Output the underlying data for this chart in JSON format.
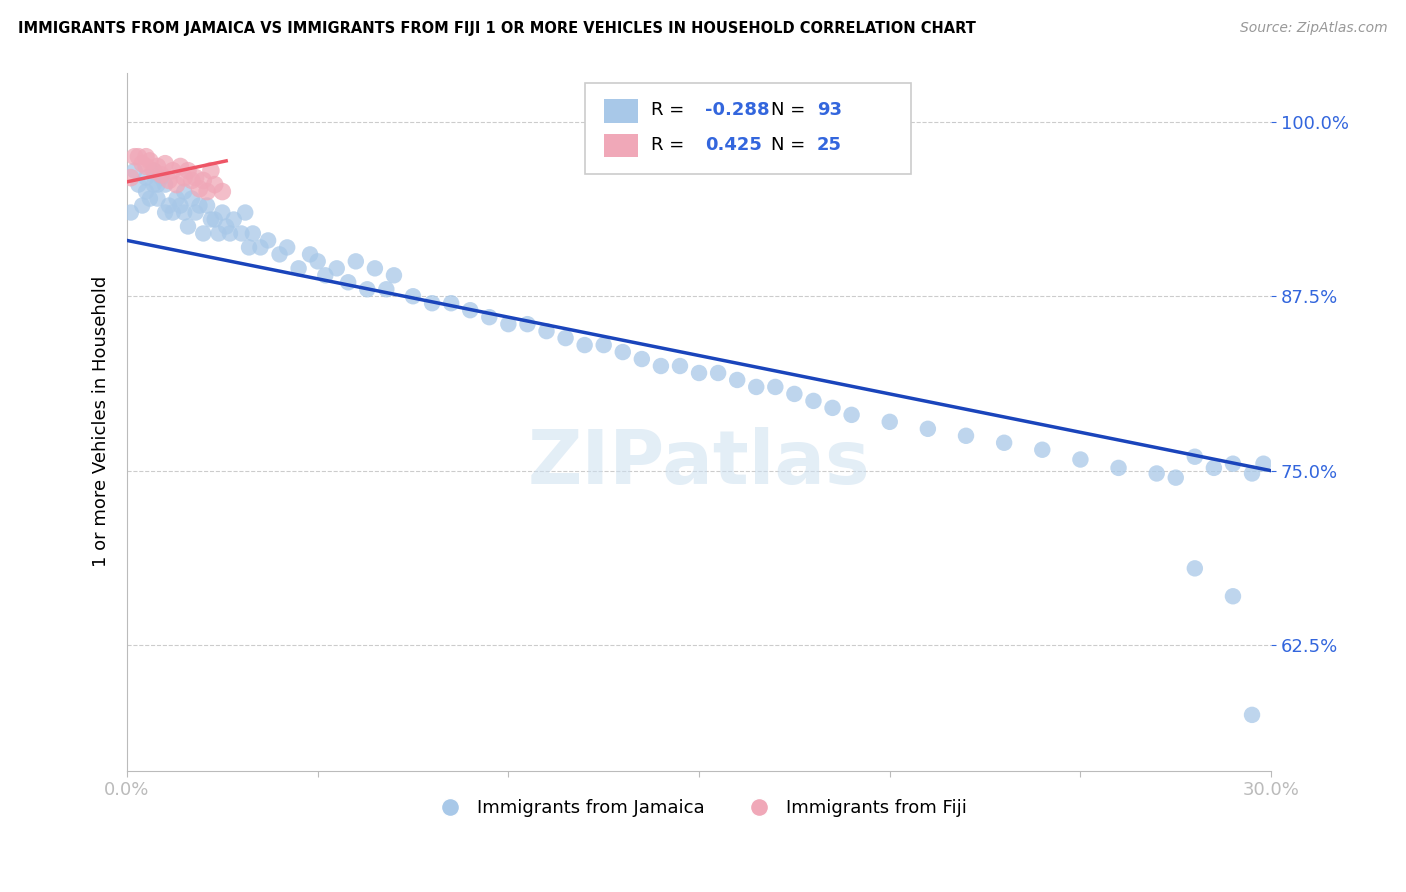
{
  "title": "IMMIGRANTS FROM JAMAICA VS IMMIGRANTS FROM FIJI 1 OR MORE VEHICLES IN HOUSEHOLD CORRELATION CHART",
  "source": "Source: ZipAtlas.com",
  "ylabel": "1 or more Vehicles in Household",
  "xlabel_jamaica": "Immigrants from Jamaica",
  "xlabel_fiji": "Immigrants from Fiji",
  "xlim": [
    0.0,
    0.3
  ],
  "ylim": [
    0.535,
    1.035
  ],
  "yticks": [
    0.625,
    0.75,
    0.875,
    1.0
  ],
  "ytick_labels": [
    "62.5%",
    "75.0%",
    "87.5%",
    "100.0%"
  ],
  "color_jamaica": "#a8c8e8",
  "color_fiji": "#f0a8b8",
  "line_color_jamaica": "#1a44bb",
  "line_color_fiji": "#ee5566",
  "legend_R_jamaica": "-0.288",
  "legend_N_jamaica": "93",
  "legend_R_fiji": "0.425",
  "legend_N_fiji": "25",
  "R_color": "#3366dd",
  "N_color": "#3366dd",
  "jamaica_x": [
    0.001,
    0.002,
    0.003,
    0.004,
    0.005,
    0.005,
    0.006,
    0.007,
    0.007,
    0.008,
    0.008,
    0.009,
    0.01,
    0.01,
    0.011,
    0.012,
    0.013,
    0.014,
    0.015,
    0.015,
    0.016,
    0.017,
    0.018,
    0.019,
    0.02,
    0.021,
    0.022,
    0.023,
    0.024,
    0.025,
    0.026,
    0.027,
    0.028,
    0.03,
    0.031,
    0.032,
    0.033,
    0.035,
    0.037,
    0.04,
    0.042,
    0.045,
    0.048,
    0.05,
    0.052,
    0.055,
    0.058,
    0.06,
    0.063,
    0.065,
    0.068,
    0.07,
    0.075,
    0.08,
    0.085,
    0.09,
    0.095,
    0.1,
    0.105,
    0.11,
    0.115,
    0.12,
    0.125,
    0.13,
    0.135,
    0.14,
    0.145,
    0.15,
    0.155,
    0.16,
    0.165,
    0.17,
    0.175,
    0.18,
    0.185,
    0.19,
    0.2,
    0.21,
    0.22,
    0.23,
    0.24,
    0.25,
    0.26,
    0.27,
    0.275,
    0.28,
    0.285,
    0.29,
    0.295,
    0.298,
    0.28,
    0.29,
    0.295
  ],
  "jamaica_y": [
    0.935,
    0.965,
    0.955,
    0.94,
    0.95,
    0.96,
    0.945,
    0.965,
    0.955,
    0.955,
    0.945,
    0.96,
    0.935,
    0.955,
    0.94,
    0.935,
    0.945,
    0.94,
    0.935,
    0.95,
    0.925,
    0.945,
    0.935,
    0.94,
    0.92,
    0.94,
    0.93,
    0.93,
    0.92,
    0.935,
    0.925,
    0.92,
    0.93,
    0.92,
    0.935,
    0.91,
    0.92,
    0.91,
    0.915,
    0.905,
    0.91,
    0.895,
    0.905,
    0.9,
    0.89,
    0.895,
    0.885,
    0.9,
    0.88,
    0.895,
    0.88,
    0.89,
    0.875,
    0.87,
    0.87,
    0.865,
    0.86,
    0.855,
    0.855,
    0.85,
    0.845,
    0.84,
    0.84,
    0.835,
    0.83,
    0.825,
    0.825,
    0.82,
    0.82,
    0.815,
    0.81,
    0.81,
    0.805,
    0.8,
    0.795,
    0.79,
    0.785,
    0.78,
    0.775,
    0.77,
    0.765,
    0.758,
    0.752,
    0.748,
    0.745,
    0.76,
    0.752,
    0.755,
    0.748,
    0.755,
    0.68,
    0.66,
    0.575
  ],
  "fiji_x": [
    0.001,
    0.002,
    0.003,
    0.004,
    0.005,
    0.005,
    0.006,
    0.007,
    0.008,
    0.009,
    0.01,
    0.011,
    0.012,
    0.013,
    0.014,
    0.015,
    0.016,
    0.017,
    0.018,
    0.019,
    0.02,
    0.021,
    0.022,
    0.023,
    0.025
  ],
  "fiji_y": [
    0.96,
    0.975,
    0.975,
    0.97,
    0.968,
    0.975,
    0.972,
    0.965,
    0.968,
    0.962,
    0.97,
    0.958,
    0.965,
    0.955,
    0.968,
    0.96,
    0.965,
    0.958,
    0.96,
    0.952,
    0.958,
    0.95,
    0.965,
    0.955,
    0.95
  ]
}
